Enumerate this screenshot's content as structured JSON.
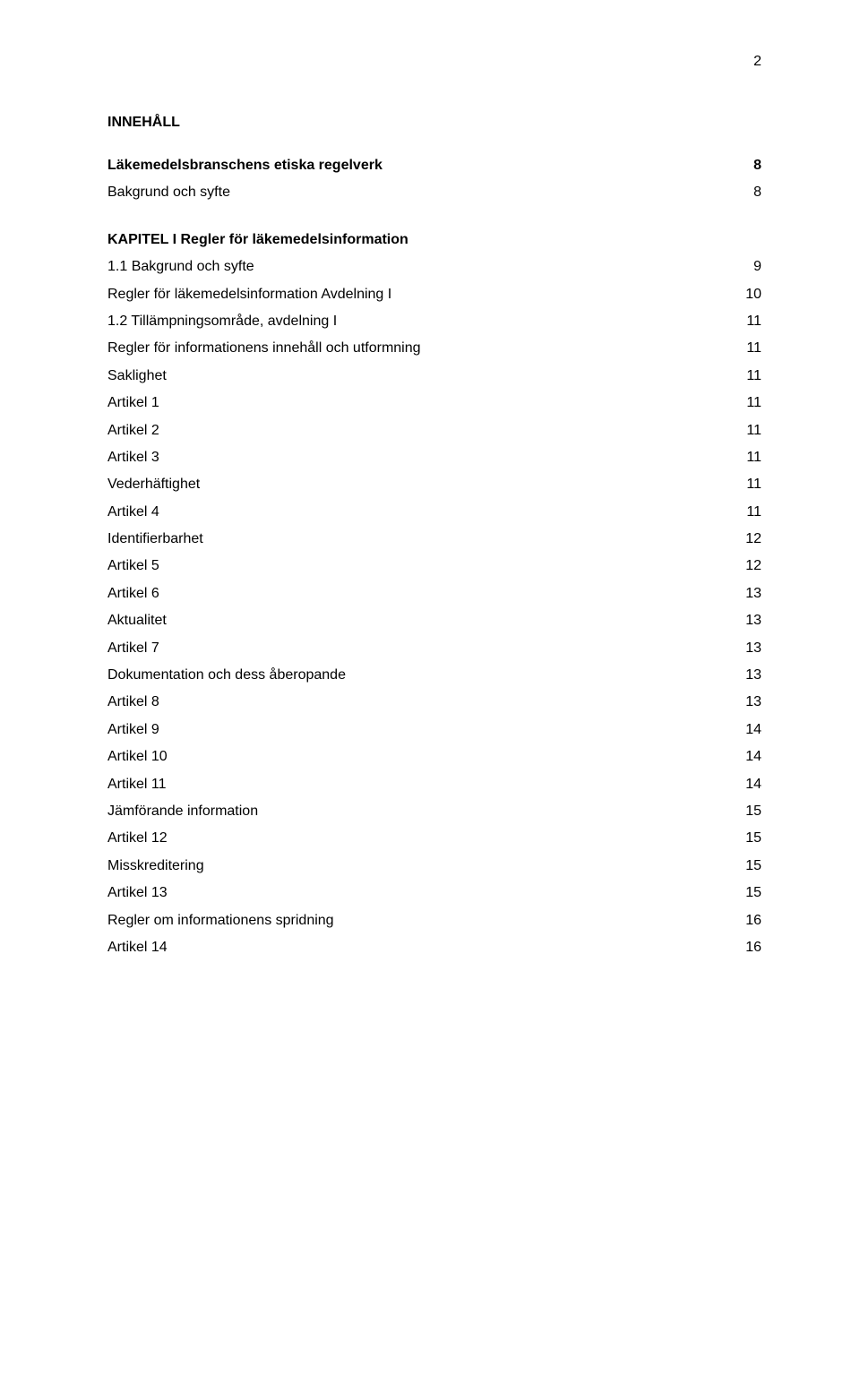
{
  "page_number": "2",
  "toc_title": "INNEHÅLL",
  "colors": {
    "text": "#000000",
    "background": "#ffffff"
  },
  "typography": {
    "body_fontsize_pt": 12,
    "title_fontsize_pt": 12,
    "font_family": "Arial",
    "line_height": 1.9
  },
  "entries": [
    {
      "label": "Läkemedelsbranschens etiska regelverk",
      "page": "8",
      "bold": true
    },
    {
      "label": "Bakgrund och syfte",
      "page": "8",
      "gap_after": true
    },
    {
      "label": "KAPITEL I Regler för läkemedelsinformation",
      "page": "",
      "bold": true
    },
    {
      "label": "1.1 Bakgrund och syfte",
      "page": "9"
    },
    {
      "label": "Regler för läkemedelsinformation Avdelning I",
      "page": "10"
    },
    {
      "label": "1.2 Tillämpningsområde, avdelning I",
      "page": "11"
    },
    {
      "label": "Regler för informationens innehåll och utformning",
      "page": "11"
    },
    {
      "label": "Saklighet",
      "page": "11"
    },
    {
      "label": "Artikel 1",
      "page": "11"
    },
    {
      "label": "Artikel 2",
      "page": "11"
    },
    {
      "label": "Artikel 3",
      "page": "11"
    },
    {
      "label": "Vederhäftighet",
      "page": "11"
    },
    {
      "label": "Artikel 4",
      "page": "11"
    },
    {
      "label": "Identifierbarhet",
      "page": "12"
    },
    {
      "label": "Artikel 5",
      "page": "12"
    },
    {
      "label": "Artikel 6",
      "page": "13"
    },
    {
      "label": "Aktualitet",
      "page": "13"
    },
    {
      "label": "Artikel 7",
      "page": "13"
    },
    {
      "label": "Dokumentation och dess åberopande",
      "page": "13"
    },
    {
      "label": "Artikel 8",
      "page": "13"
    },
    {
      "label": "Artikel 9",
      "page": "14"
    },
    {
      "label": "Artikel 10",
      "page": "14"
    },
    {
      "label": "Artikel 11",
      "page": "14"
    },
    {
      "label": "Jämförande information",
      "page": "15"
    },
    {
      "label": "Artikel 12",
      "page": "15"
    },
    {
      "label": "Misskreditering",
      "page": "15"
    },
    {
      "label": "Artikel 13",
      "page": "15"
    },
    {
      "label": "Regler om informationens spridning",
      "page": "16"
    },
    {
      "label": "Artikel 14",
      "page": "16"
    }
  ]
}
